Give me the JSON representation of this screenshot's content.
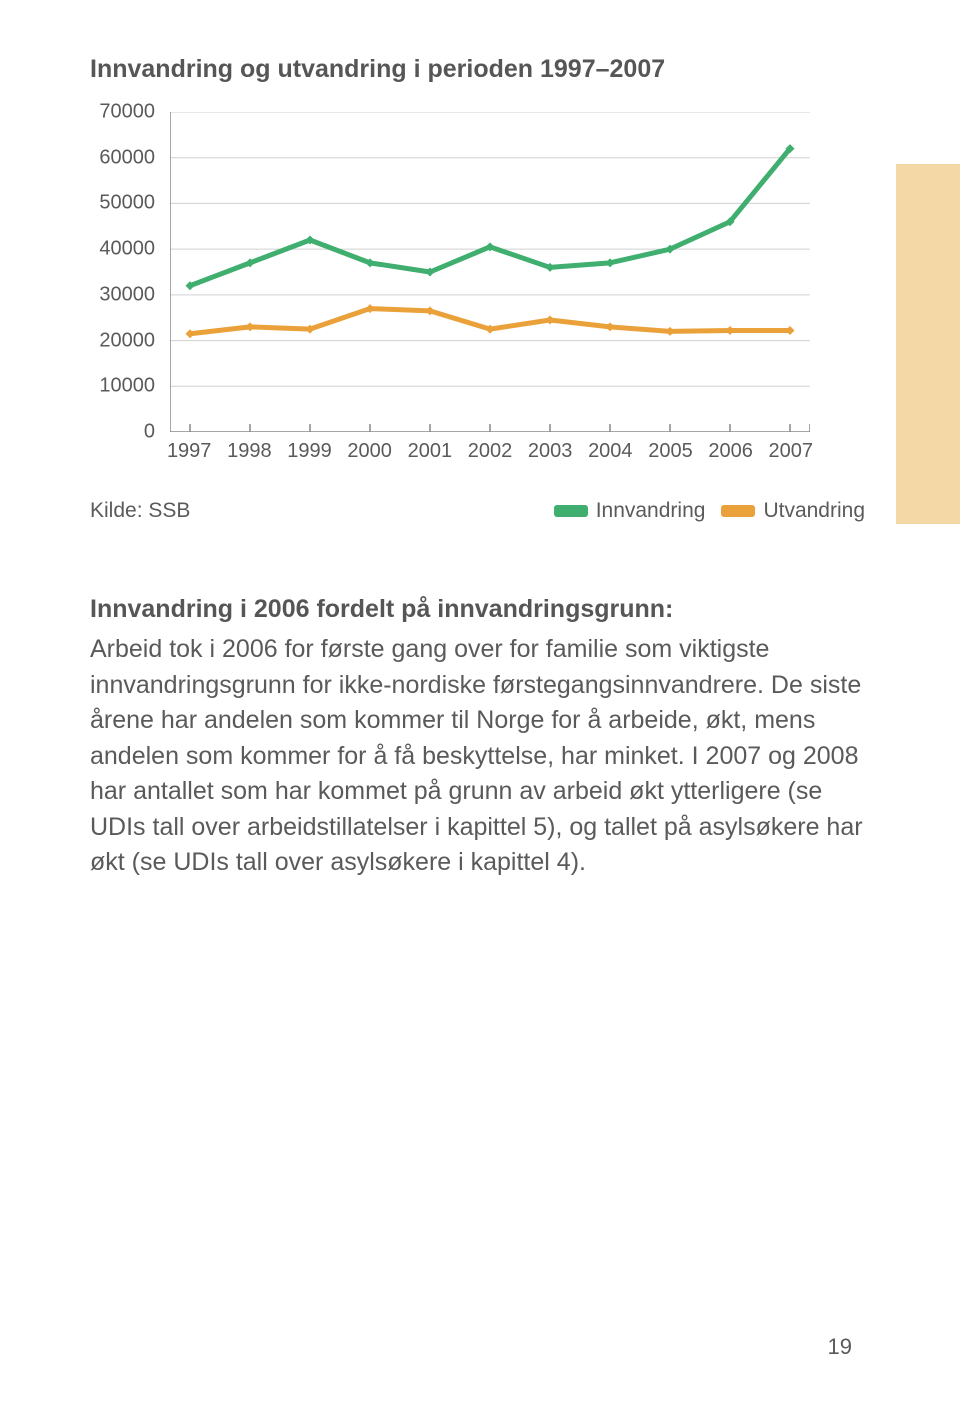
{
  "chart": {
    "title": "Innvandring og utvandring i perioden 1997–2007",
    "type": "line",
    "background_color": "#ffffff",
    "grid_color": "#d0d0d0",
    "axis_color": "#888888",
    "ylim": [
      0,
      70000
    ],
    "ytick_step": 10000,
    "yticks": [
      "70000",
      "60000",
      "50000",
      "40000",
      "30000",
      "20000",
      "10000",
      "0"
    ],
    "xticks": [
      "1997",
      "1998",
      "1999",
      "2000",
      "2001",
      "2002",
      "2003",
      "2004",
      "2005",
      "2006",
      "2007"
    ],
    "series": [
      {
        "name": "Innvandring",
        "color": "#3fae6f",
        "line_width": 5,
        "marker": "diamond",
        "values": [
          32000,
          37000,
          42000,
          37000,
          35000,
          40500,
          36000,
          37000,
          40000,
          46000,
          62000
        ]
      },
      {
        "name": "Utvandring",
        "color": "#eaa13a",
        "line_width": 5,
        "marker": "diamond",
        "values": [
          21500,
          23000,
          22500,
          27000,
          26500,
          22500,
          24500,
          23000,
          22000,
          22200,
          22200
        ]
      }
    ],
    "label_fontsize": 20,
    "text_color": "#5a5a5a"
  },
  "legend": {
    "source": "Kilde: SSB",
    "items": [
      {
        "label": "Innvandring",
        "color": "#3fae6f"
      },
      {
        "label": "Utvandring",
        "color": "#eaa13a"
      }
    ]
  },
  "section": {
    "heading": "Innvandring i 2006 fordelt på innvandringsgrunn:",
    "body": "Arbeid tok i 2006 for første gang over for familie som viktigste innvandringsgrunn for ikke-nordiske førstegangs­innvandrere. De siste årene har andelen som kommer til Norge for å arbeide, økt, mens andelen som kommer for å få beskyttelse, har minket. I 2007 og 2008 har antallet som har kommet på grunn av arbeid økt ytterligere (se UDIs tall over arbeidstillatelser i kapittel 5), og tallet på asylsøkere har økt (se UDIs tall over asylsøkere i kapittel 4)."
  },
  "side_band_color": "#f4d9a6",
  "page_number": "19"
}
